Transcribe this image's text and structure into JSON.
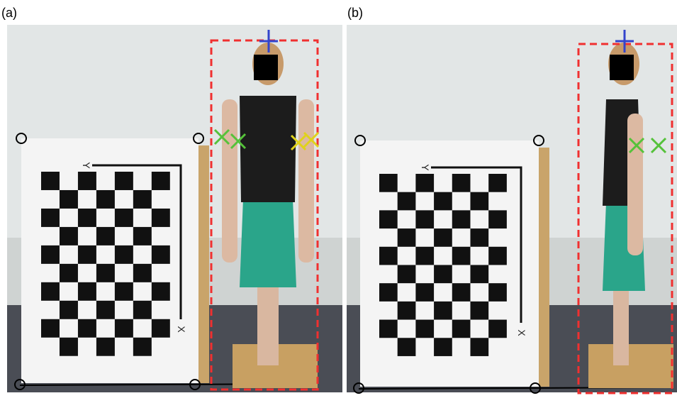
{
  "panels": [
    {
      "label": "(a)",
      "axis_labels": [
        "Y",
        "X"
      ]
    },
    {
      "label": "(b)",
      "axis_labels": [
        "Y",
        "X"
      ]
    }
  ]
}
